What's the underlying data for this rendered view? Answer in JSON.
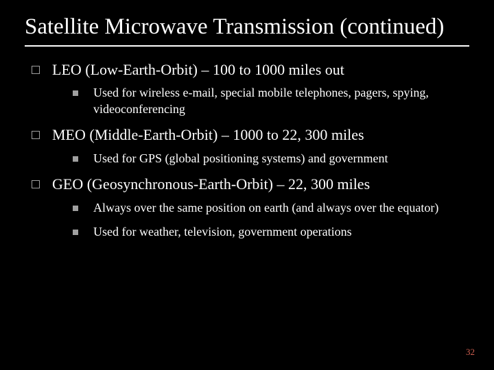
{
  "title": "Satellite Microwave Transmission (continued)",
  "items": [
    {
      "text": "LEO (Low-Earth-Orbit) – 100 to 1000 miles out",
      "subitems": [
        {
          "text": "Used for wireless e-mail, special mobile telephones, pagers, spying, videoconferencing"
        }
      ]
    },
    {
      "text": "MEO (Middle-Earth-Orbit) – 1000 to 22, 300 miles",
      "subitems": [
        {
          "text": "Used for GPS (global positioning systems) and government"
        }
      ]
    },
    {
      "text": "GEO (Geosynchronous-Earth-Orbit) – 22, 300 miles",
      "subitems": [
        {
          "text": "Always over the same position on earth (and always over the equator)"
        },
        {
          "text": "Used for weather, television, government operations"
        }
      ]
    }
  ],
  "slide_number": "32",
  "colors": {
    "background": "#000000",
    "text": "#ffffff",
    "bullet_border": "#a0a0a0",
    "bullet_fill": "#a0a0a0",
    "slide_number": "#d06050"
  }
}
